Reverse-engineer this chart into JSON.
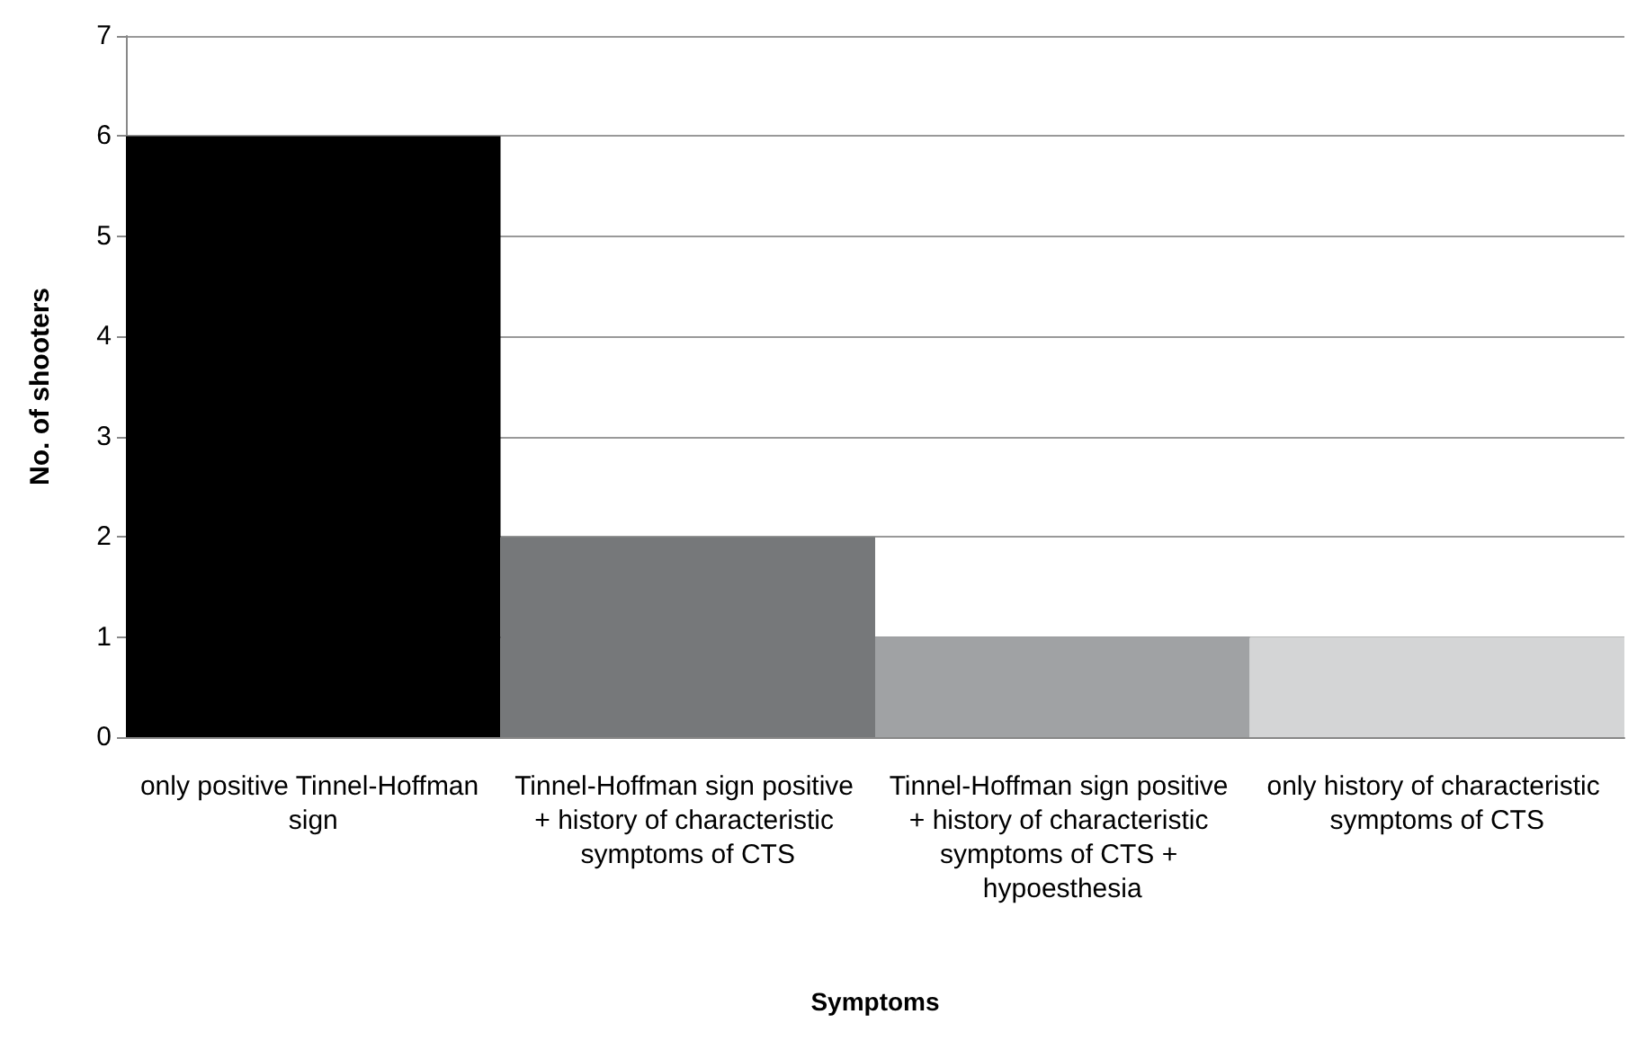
{
  "chart_data": {
    "type": "bar",
    "xlabel": "Symptoms",
    "ylabel": "No. of shooters",
    "categories": [
      "only positive Tinnel-Hoffman sign",
      "Tinnel-Hoffman sign positive + history of characteristic symptoms of CTS",
      "Tinnel-Hoffman sign positive + history of characteristic symptoms of CTS + hypoesthesia",
      "only history of characteristic symptoms of CTS"
    ],
    "values": [
      6,
      2,
      1,
      1
    ],
    "colors": [
      "#000000",
      "#76787a",
      "#a0a2a4",
      "#d4d5d6"
    ],
    "ylim": [
      0,
      7
    ],
    "yticks": [
      0,
      1,
      2,
      3,
      4,
      5,
      6,
      7
    ],
    "grid": "y"
  }
}
